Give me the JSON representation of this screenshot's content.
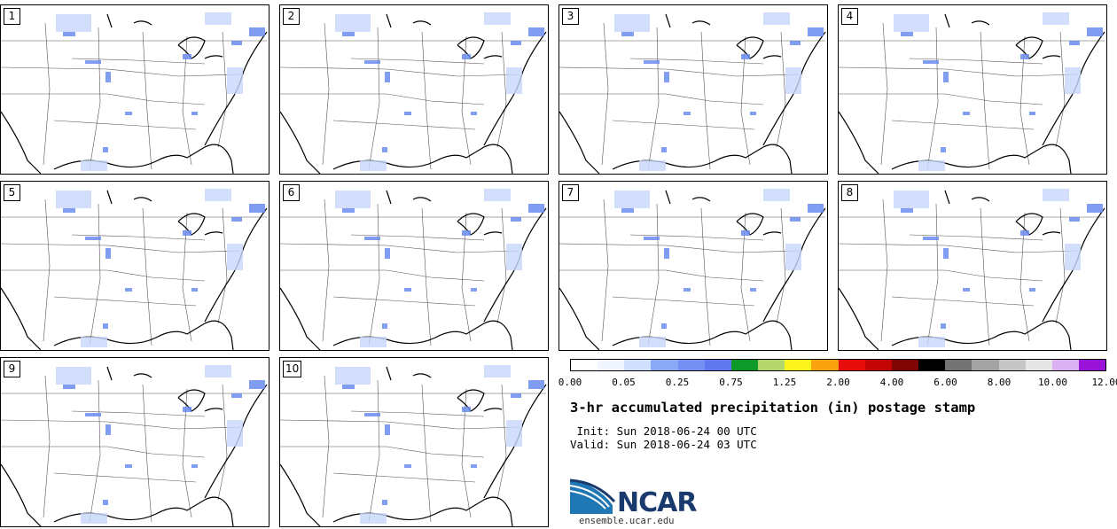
{
  "panels": [
    {
      "label": "1"
    },
    {
      "label": "2"
    },
    {
      "label": "3"
    },
    {
      "label": "4"
    },
    {
      "label": "5"
    },
    {
      "label": "6"
    },
    {
      "label": "7"
    },
    {
      "label": "8"
    },
    {
      "label": "9"
    },
    {
      "label": "10"
    }
  ],
  "colorbar": {
    "colors": [
      "#ffffff",
      "#f0f5ff",
      "#d0dffc",
      "#8aaaf5",
      "#7590f2",
      "#5f78ef",
      "#0d9a2a",
      "#b3d56a",
      "#fbf41c",
      "#f9a40e",
      "#e80c0c",
      "#c30505",
      "#7f0404",
      "#000000",
      "#737373",
      "#a3a3a3",
      "#c6c6c6",
      "#e6e6e6",
      "#dcb1f4",
      "#9a13d9"
    ],
    "ticks": [
      "0.00",
      "0.05",
      "0.25",
      "0.75",
      "1.25",
      "2.00",
      "4.00",
      "6.00",
      "8.00",
      "10.00",
      "12.00"
    ]
  },
  "title": "3-hr accumulated precipitation (in) postage stamp",
  "init_line": " Init: Sun 2018-06-24 00 UTC",
  "valid_line": "Valid: Sun 2018-06-24 03 UTC",
  "logo_text": "NCAR",
  "url": "ensemble.ucar.edu"
}
